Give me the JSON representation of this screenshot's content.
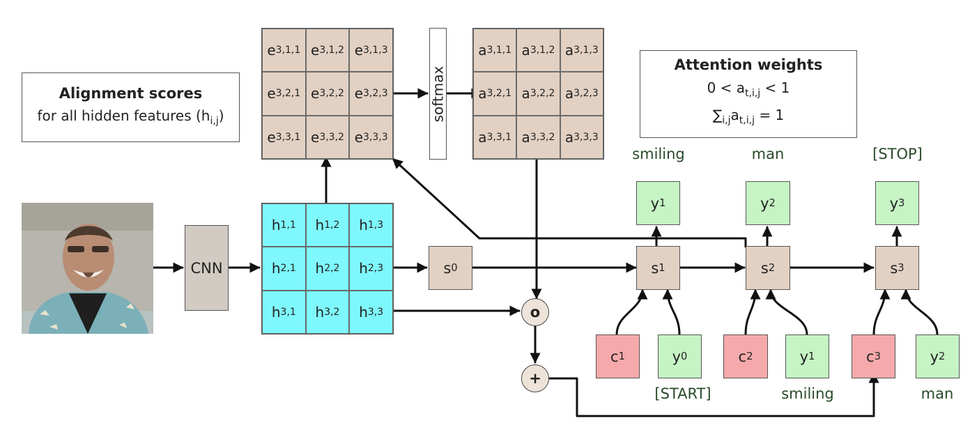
{
  "alignment_box": {
    "title": "Alignment scores",
    "subtitle_prefix": "for all hidden features (h",
    "subtitle_sub": "i,j",
    "subtitle_suffix": ")"
  },
  "attention_box": {
    "title": "Attention weights",
    "line1": {
      "pre": "0 < a",
      "sub": "t,i,j",
      "post": " < 1"
    },
    "line2": {
      "pre": "∑",
      "sub1": "i,j",
      "mid": "a",
      "sub2": "t,i,j",
      "post": " = 1"
    }
  },
  "cnn_label": "CNN",
  "softmax_label": "softmax",
  "e_grid": [
    {
      "base": "e",
      "sub": "3,1,1"
    },
    {
      "base": "e",
      "sub": "3,1,2"
    },
    {
      "base": "e",
      "sub": "3,1,3"
    },
    {
      "base": "e",
      "sub": "3,2,1"
    },
    {
      "base": "e",
      "sub": "3,2,2"
    },
    {
      "base": "e",
      "sub": "3,2,3"
    },
    {
      "base": "e",
      "sub": "3,3,1"
    },
    {
      "base": "e",
      "sub": "3,3,2"
    },
    {
      "base": "e",
      "sub": "3,3,3"
    }
  ],
  "a_grid": [
    {
      "base": "a",
      "sub": "3,1,1"
    },
    {
      "base": "a",
      "sub": "3,1,2"
    },
    {
      "base": "a",
      "sub": "3,1,3"
    },
    {
      "base": "a",
      "sub": "3,2,1"
    },
    {
      "base": "a",
      "sub": "3,2,2"
    },
    {
      "base": "a",
      "sub": "3,2,3"
    },
    {
      "base": "a",
      "sub": "3,3,1"
    },
    {
      "base": "a",
      "sub": "3,3,2"
    },
    {
      "base": "a",
      "sub": "3,3,3"
    }
  ],
  "h_grid": [
    {
      "base": "h",
      "sub": "1,1"
    },
    {
      "base": "h",
      "sub": "1,2"
    },
    {
      "base": "h",
      "sub": "1,3"
    },
    {
      "base": "h",
      "sub": "2,1"
    },
    {
      "base": "h",
      "sub": "2,2"
    },
    {
      "base": "h",
      "sub": "2,3"
    },
    {
      "base": "h",
      "sub": "3,1"
    },
    {
      "base": "h",
      "sub": "3,2"
    },
    {
      "base": "h",
      "sub": "3,3"
    }
  ],
  "s0": {
    "base": "s",
    "sub": "0"
  },
  "states": [
    {
      "base": "s",
      "sub": "1"
    },
    {
      "base": "s",
      "sub": "2"
    },
    {
      "base": "s",
      "sub": "3"
    }
  ],
  "outputs": [
    {
      "base": "y",
      "sub": "1"
    },
    {
      "base": "y",
      "sub": "2"
    },
    {
      "base": "y",
      "sub": "3"
    }
  ],
  "output_words": [
    "smiling",
    "man",
    "[STOP]"
  ],
  "contexts": [
    {
      "base": "c",
      "sub": "1"
    },
    {
      "base": "c",
      "sub": "2"
    },
    {
      "base": "c",
      "sub": "3"
    }
  ],
  "inputs": [
    {
      "base": "y",
      "sub": "0"
    },
    {
      "base": "y",
      "sub": "1"
    },
    {
      "base": "y",
      "sub": "2"
    }
  ],
  "input_words": [
    "[START]",
    "smiling",
    "man"
  ],
  "ops": {
    "multiply": "o",
    "add": "+"
  },
  "colors": {
    "tan": "#e2d1c3",
    "cyan": "#7ef8fc",
    "green": "#c6f4c4",
    "pink": "#f6a9ab",
    "gray": "#d2cbc3"
  }
}
